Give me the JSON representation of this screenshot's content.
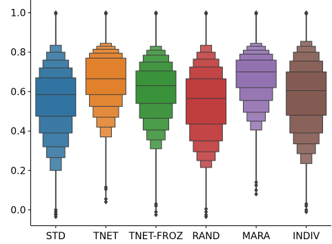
{
  "chart_data": {
    "type": "boxen",
    "title": "",
    "xlabel": "",
    "ylabel": "",
    "ylim": [
      -0.09,
      1.05
    ],
    "yticks": [
      0.0,
      0.2,
      0.4,
      0.6,
      0.8,
      1.0
    ],
    "ytick_labels": [
      "0.0",
      "0.2",
      "0.4",
      "0.6",
      "0.8",
      "1.0"
    ],
    "grid": false,
    "categories": [
      "STD",
      "TNET",
      "TNET-FROZ",
      "RAND",
      "MARA",
      "INDIV"
    ],
    "series": [
      {
        "category": "STD",
        "color": "#3274a1",
        "median": 0.585,
        "levels": [
          [
            0.475,
            0.67
          ],
          [
            0.39,
            0.72
          ],
          [
            0.32,
            0.76
          ],
          [
            0.265,
            0.8
          ],
          [
            0.2,
            0.835
          ]
        ],
        "whiskers": [
          -0.035,
          1.0
        ],
        "outliers": [
          -0.035,
          -0.025,
          -0.02,
          -0.01,
          0.0,
          0.995,
          1.0
        ]
      },
      {
        "category": "TNET",
        "color": "#e1812c",
        "median": 0.665,
        "levels": [
          [
            0.585,
            0.77
          ],
          [
            0.525,
            0.795
          ],
          [
            0.47,
            0.815
          ],
          [
            0.42,
            0.83
          ],
          [
            0.37,
            0.845
          ]
        ],
        "whiskers": [
          0.04,
          1.0
        ],
        "outliers": [
          0.04,
          0.055,
          0.105,
          0.115,
          0.995,
          1.0
        ]
      },
      {
        "category": "TNET-FROZ",
        "color": "#3a923a",
        "median": 0.63,
        "levels": [
          [
            0.54,
            0.705
          ],
          [
            0.465,
            0.75
          ],
          [
            0.405,
            0.785
          ],
          [
            0.355,
            0.81
          ],
          [
            0.31,
            0.83
          ]
        ],
        "whiskers": [
          -0.03,
          1.0
        ],
        "outliers": [
          -0.025,
          -0.01,
          0.02,
          0.03,
          0.995,
          1.0
        ]
      },
      {
        "category": "RAND",
        "color": "#c03d3e",
        "median": 0.565,
        "levels": [
          [
            0.435,
            0.665
          ],
          [
            0.35,
            0.725
          ],
          [
            0.295,
            0.765
          ],
          [
            0.25,
            0.8
          ],
          [
            0.215,
            0.835
          ]
        ],
        "whiskers": [
          -0.04,
          1.0
        ],
        "outliers": [
          -0.035,
          -0.025,
          -0.01,
          0.005,
          0.995,
          1.0
        ]
      },
      {
        "category": "MARA",
        "color": "#9372b2",
        "median": 0.7,
        "levels": [
          [
            0.62,
            0.76
          ],
          [
            0.555,
            0.79
          ],
          [
            0.495,
            0.81
          ],
          [
            0.45,
            0.83
          ],
          [
            0.405,
            0.845
          ]
        ],
        "whiskers": [
          0.08,
          1.0
        ],
        "outliers": [
          0.08,
          0.1,
          0.125,
          0.14,
          0.995,
          1.0
        ]
      },
      {
        "category": "INDIV",
        "color": "#845b53",
        "median": 0.605,
        "levels": [
          [
            0.48,
            0.7
          ],
          [
            0.39,
            0.755
          ],
          [
            0.335,
            0.8
          ],
          [
            0.285,
            0.83
          ],
          [
            0.235,
            0.855
          ]
        ],
        "whiskers": [
          -0.01,
          1.0
        ],
        "outliers": [
          -0.01,
          0.0,
          0.02,
          0.03,
          0.995,
          1.0
        ]
      }
    ]
  }
}
